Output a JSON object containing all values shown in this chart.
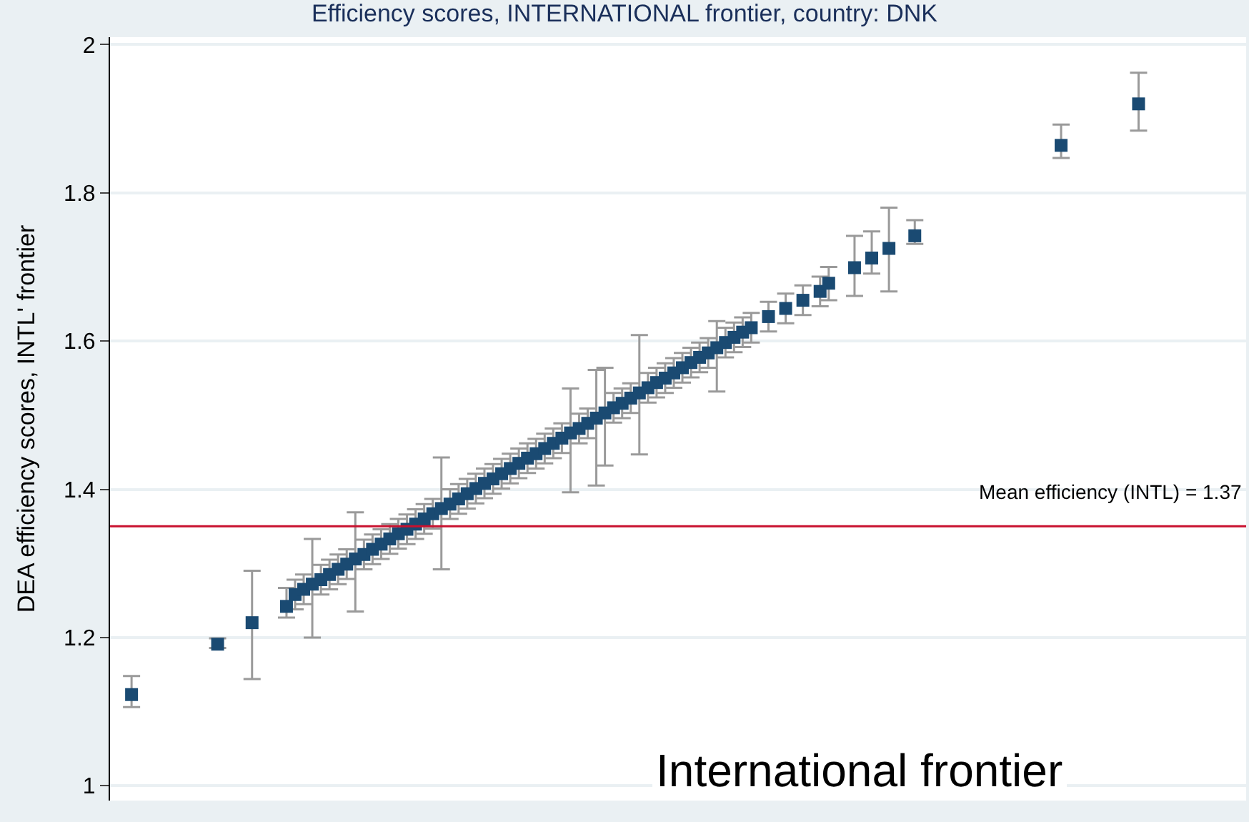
{
  "chart_data": {
    "type": "scatter",
    "title": "Efficiency scores, INTERNATIONAL frontier, country: DNK",
    "ylabel": "DEA efficiency scores, INTL' frontier",
    "annotations": [
      "Mean efficiency (INTL) = 1.37",
      "International frontier"
    ],
    "categories": [
      null,
      null,
      null,
      null,
      null,
      null,
      null,
      null,
      null,
      null,
      null,
      null,
      null,
      null,
      null,
      null,
      null,
      null,
      null,
      null,
      null,
      null,
      null,
      null,
      null,
      null,
      null,
      null,
      null,
      null,
      null,
      null,
      null,
      null,
      null,
      null,
      null,
      null,
      null,
      null,
      null,
      null,
      null,
      null,
      null,
      null,
      null,
      null,
      null,
      null,
      null,
      null,
      null,
      null,
      null,
      null,
      null,
      null,
      null,
      null,
      null,
      null,
      null,
      null,
      null,
      null,
      null,
      null,
      null,
      null,
      null,
      null,
      null,
      null,
      null,
      null,
      null,
      null,
      null,
      null,
      null,
      null,
      null,
      null,
      null,
      null,
      null,
      null,
      null,
      null,
      null,
      null,
      null,
      null,
      null,
      null,
      null,
      null,
      null,
      null,
      null,
      null,
      null,
      null,
      null,
      null,
      null,
      null,
      null,
      null,
      null,
      null,
      null,
      null,
      null,
      null,
      null,
      null,
      null,
      null,
      null,
      null,
      null,
      null,
      null,
      null,
      null,
      null,
      null,
      null,
      null,
      null
    ],
    "series": [
      {
        "color": "#1a4a72",
        "values": [
          null,
          null,
          1.123,
          null,
          null,
          null,
          null,
          null,
          null,
          null,
          null,
          null,
          1.191,
          null,
          null,
          null,
          1.22,
          null,
          null,
          null,
          1.242,
          1.258,
          1.265,
          1.272,
          1.278,
          1.285,
          1.292,
          1.299,
          1.306,
          1.312,
          1.319,
          1.326,
          1.333,
          1.34,
          1.346,
          1.353,
          1.36,
          1.367,
          1.374,
          1.38,
          1.387,
          1.394,
          1.401,
          1.408,
          1.414,
          1.421,
          1.428,
          1.435,
          1.442,
          1.448,
          1.455,
          1.462,
          1.469,
          1.476,
          1.482,
          1.489,
          1.496,
          1.503,
          1.51,
          1.516,
          1.523,
          1.53,
          1.537,
          1.544,
          1.55,
          1.557,
          1.564,
          1.571,
          1.578,
          1.584,
          1.591,
          1.598,
          1.605,
          1.612,
          1.618,
          null,
          1.633,
          null,
          1.644,
          null,
          1.655,
          null,
          1.667,
          1.678,
          null,
          null,
          1.699,
          null,
          1.712,
          null,
          1.725,
          null,
          null,
          1.742,
          null,
          null,
          null,
          null,
          null,
          null,
          null,
          null,
          null,
          null,
          null,
          null,
          null,
          null,
          null,
          null,
          1.864,
          null,
          null,
          null,
          null,
          null,
          null,
          null,
          null,
          1.92,
          null,
          null,
          null,
          null,
          null,
          null,
          null,
          null,
          null,
          null,
          null,
          null
        ],
        "errors": [
          null,
          null,
          [
            1.106,
            1.148
          ],
          null,
          null,
          null,
          null,
          null,
          null,
          null,
          null,
          null,
          [
            1.186,
            1.199
          ],
          null,
          null,
          null,
          [
            1.144,
            1.29
          ],
          null,
          null,
          null,
          [
            1.227,
            1.267
          ],
          0.02,
          0.02,
          [
            1.2,
            1.333
          ],
          0.02,
          0.02,
          0.02,
          0.02,
          [
            1.235,
            1.369
          ],
          0.02,
          0.02,
          0.02,
          0.02,
          0.02,
          0.02,
          0.02,
          0.02,
          0.02,
          [
            1.292,
            1.443
          ],
          0.02,
          0.02,
          0.02,
          0.02,
          0.02,
          0.02,
          0.02,
          0.02,
          0.02,
          0.02,
          0.02,
          0.02,
          0.02,
          0.02,
          [
            1.396,
            1.536
          ],
          0.02,
          0.02,
          [
            1.405,
            1.561
          ],
          [
            1.432,
            1.564
          ],
          0.02,
          0.02,
          0.02,
          [
            1.447,
            1.608
          ],
          0.02,
          0.02,
          0.02,
          0.02,
          0.02,
          0.02,
          0.02,
          0.02,
          [
            1.532,
            1.627
          ],
          0.02,
          0.02,
          0.02,
          0.02,
          null,
          0.02,
          null,
          0.02,
          null,
          0.02,
          null,
          0.02,
          [
            1.655,
            1.7
          ],
          null,
          null,
          [
            1.661,
            1.742
          ],
          null,
          [
            1.691,
            1.748
          ],
          null,
          [
            1.667,
            1.78
          ],
          null,
          null,
          [
            1.731,
            1.763
          ],
          null,
          null,
          null,
          null,
          null,
          null,
          null,
          null,
          null,
          null,
          null,
          null,
          null,
          null,
          null,
          null,
          [
            1.847,
            1.892
          ],
          null,
          null,
          null,
          null,
          null,
          null,
          null,
          null,
          [
            1.884,
            1.962
          ],
          null,
          null,
          null,
          null,
          null,
          null,
          null,
          null,
          null,
          null,
          null,
          null
        ]
      }
    ],
    "ylim": [
      0.98,
      2.01
    ],
    "yticks": [
      1,
      1.2,
      1.4,
      1.6,
      1.8,
      2
    ],
    "tick_labels": "y",
    "grid": "y",
    "marker": "square",
    "ref_lines": [
      {
        "axis": "y",
        "value": 1.35,
        "color": "#c8102e"
      }
    ]
  }
}
